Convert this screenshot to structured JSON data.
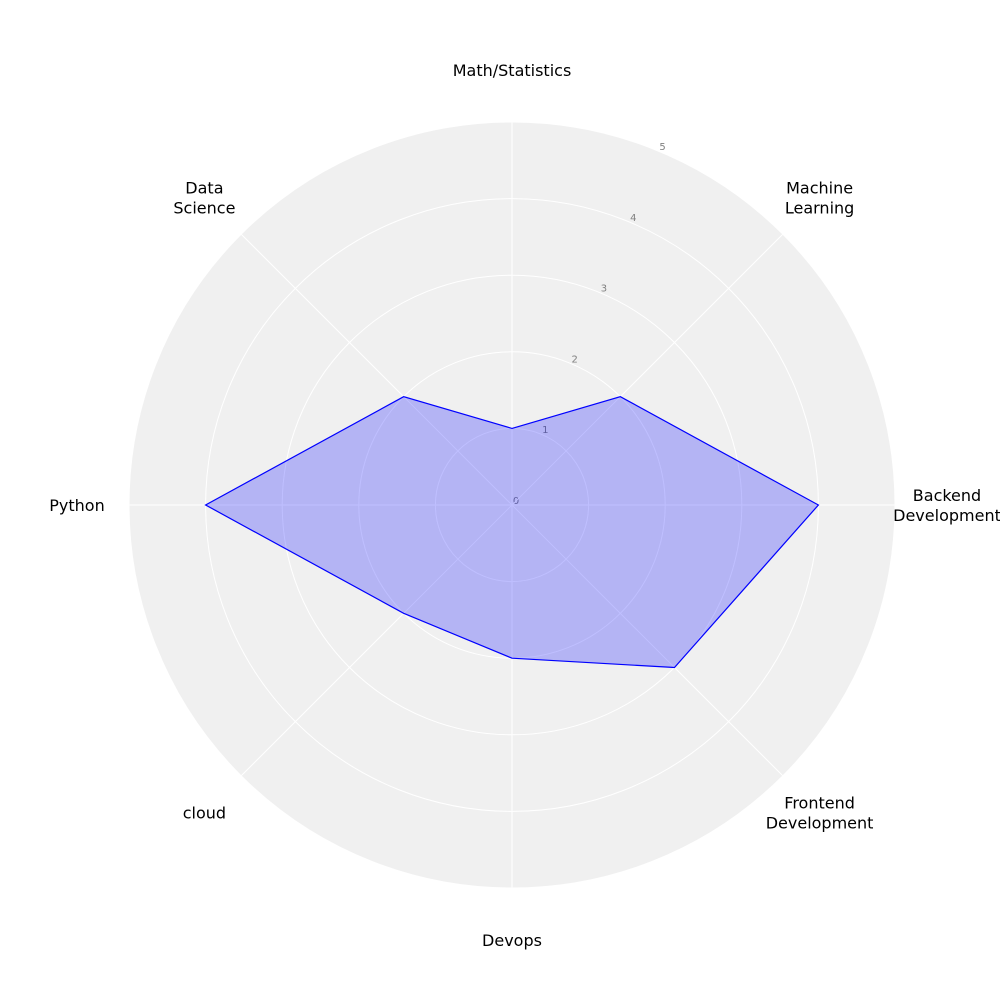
{
  "chart_data": {
    "type": "radar",
    "categories": [
      "Math/Statistics",
      "Machine\nLearning",
      "Backend\nDevelopment",
      "Frontend\nDevelopment",
      "Devops",
      "cloud",
      "Python",
      "Data\nScience"
    ],
    "values": [
      1,
      2,
      4,
      3,
      2,
      2,
      4,
      2
    ],
    "color": "#0000ff",
    "ylim": [
      0,
      5
    ],
    "yticks": [
      0,
      1,
      2,
      3,
      4,
      5
    ],
    "grid": true
  }
}
